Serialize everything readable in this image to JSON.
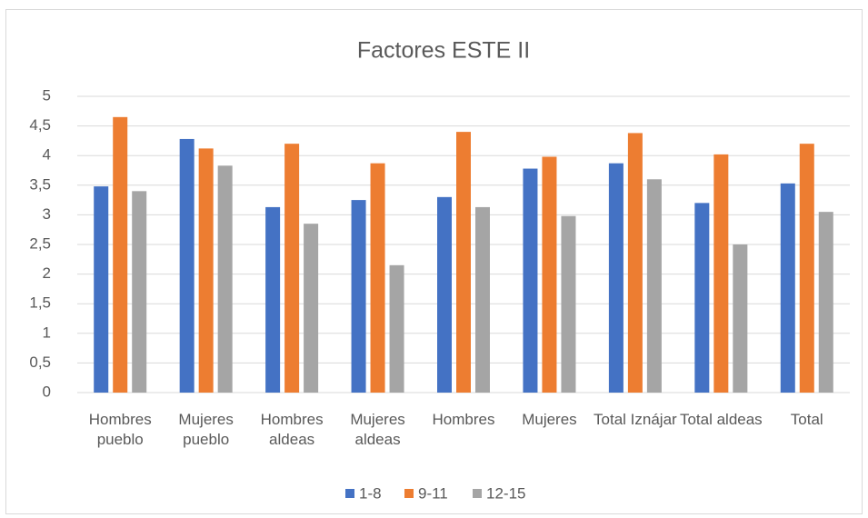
{
  "chart_data": {
    "type": "bar",
    "title": "Factores ESTE II",
    "categories": [
      "Hombres pueblo",
      "Mujeres pueblo",
      "Hombres aldeas",
      "Mujeres aldeas",
      "Hombres",
      "Mujeres",
      "Total Iznájar",
      "Total aldeas",
      "Total"
    ],
    "series": [
      {
        "name": "1-8",
        "color": "#4472c4",
        "values": [
          3.48,
          4.28,
          3.13,
          3.25,
          3.3,
          3.78,
          3.87,
          3.2,
          3.53
        ]
      },
      {
        "name": "9-11",
        "color": "#ed7d31",
        "values": [
          4.65,
          4.12,
          4.2,
          3.87,
          4.4,
          3.98,
          4.38,
          4.02,
          4.2
        ]
      },
      {
        "name": "12-15",
        "color": "#a5a5a5",
        "values": [
          3.4,
          3.83,
          2.85,
          2.15,
          3.13,
          2.98,
          3.6,
          2.5,
          3.05
        ]
      }
    ],
    "ylim": [
      0,
      5
    ],
    "yticks": [
      0,
      {
        "value": 0.5,
        "label": "0,5"
      },
      1,
      {
        "value": 1.5,
        "label": "1,5"
      },
      2,
      {
        "value": 2.5,
        "label": "2,5"
      },
      3,
      {
        "value": 3.5,
        "label": "3,5"
      },
      4,
      {
        "value": 4.5,
        "label": "4,5"
      },
      5
    ],
    "grid": true,
    "legend": "bottom"
  }
}
